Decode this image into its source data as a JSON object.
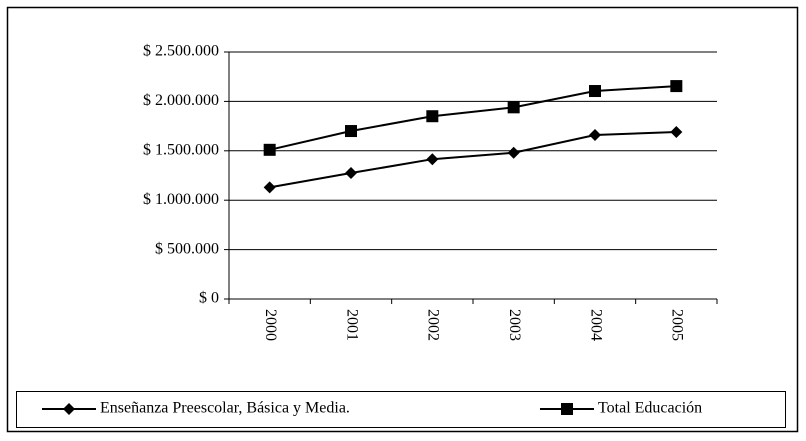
{
  "chart_data": {
    "type": "line",
    "categories": [
      "2000",
      "2001",
      "2002",
      "2003",
      "2004",
      "2005"
    ],
    "series": [
      {
        "name": "Enseñanza Preescolar, Básica y Media.",
        "color": "#000000",
        "marker": "diamond",
        "values": [
          1130000,
          1275000,
          1415000,
          1480000,
          1660000,
          1690000
        ]
      },
      {
        "name": "Total Educación",
        "color": "#000000",
        "marker": "square",
        "values": [
          1510000,
          1700000,
          1850000,
          1940000,
          2105000,
          2155000
        ]
      }
    ],
    "ylim": [
      0,
      2500000
    ],
    "yticks": [
      {
        "value": 0,
        "label": "$ 0"
      },
      {
        "value": 500000,
        "label": "$ 500.000"
      },
      {
        "value": 1000000,
        "label": "$ 1.000.000"
      },
      {
        "value": 1500000,
        "label": "$ 1.500.000"
      },
      {
        "value": 2000000,
        "label": "$ 2.000.000"
      },
      {
        "value": 2500000,
        "label": "$ 2.500.000"
      }
    ],
    "grid": true
  }
}
